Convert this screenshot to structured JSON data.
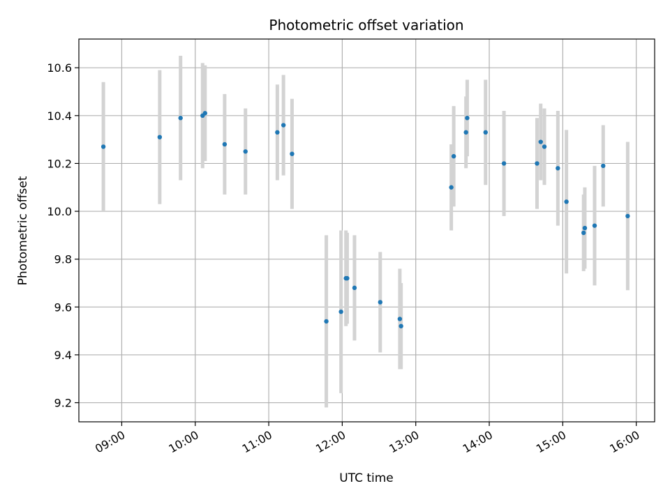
{
  "chart_data": {
    "type": "scatter",
    "title": "Photometric offset variation",
    "xlabel": "UTC time",
    "ylabel": "Photometric offset",
    "x_ticks": [
      "09:00",
      "10:00",
      "11:00",
      "12:00",
      "13:00",
      "14:00",
      "15:00",
      "16:00"
    ],
    "y_ticks": [
      "9.2",
      "9.4",
      "9.6",
      "9.8",
      "10.0",
      "10.2",
      "10.4",
      "10.6"
    ],
    "xlim": [
      "08:25",
      "16:15"
    ],
    "ylim": [
      9.12,
      10.72
    ],
    "grid": true,
    "colors": {
      "point": "#1f77b4",
      "errorbar": "#d3d3d3",
      "grid": "#b0b0b0"
    },
    "points": [
      {
        "x": "08:45",
        "y": 10.27,
        "yerr": 0.27
      },
      {
        "x": "09:31",
        "y": 10.31,
        "yerr": 0.28
      },
      {
        "x": "09:48",
        "y": 10.39,
        "yerr": 0.26
      },
      {
        "x": "10:06",
        "y": 10.4,
        "yerr": 0.22
      },
      {
        "x": "10:08",
        "y": 10.41,
        "yerr": 0.2
      },
      {
        "x": "10:24",
        "y": 10.28,
        "yerr": 0.21
      },
      {
        "x": "10:41",
        "y": 10.25,
        "yerr": 0.18
      },
      {
        "x": "11:07",
        "y": 10.33,
        "yerr": 0.2
      },
      {
        "x": "11:12",
        "y": 10.36,
        "yerr": 0.21
      },
      {
        "x": "11:19",
        "y": 10.24,
        "yerr": 0.23
      },
      {
        "x": "11:47",
        "y": 9.54,
        "yerr": 0.36
      },
      {
        "x": "11:59",
        "y": 9.58,
        "yerr": 0.34
      },
      {
        "x": "12:03",
        "y": 9.72,
        "yerr": 0.2
      },
      {
        "x": "12:04",
        "y": 9.72,
        "yerr": 0.19
      },
      {
        "x": "12:10",
        "y": 9.68,
        "yerr": 0.22
      },
      {
        "x": "12:31",
        "y": 9.62,
        "yerr": 0.21
      },
      {
        "x": "12:47",
        "y": 9.55,
        "yerr": 0.21
      },
      {
        "x": "12:48",
        "y": 9.52,
        "yerr": 0.18
      },
      {
        "x": "13:29",
        "y": 10.1,
        "yerr": 0.18
      },
      {
        "x": "13:31",
        "y": 10.23,
        "yerr": 0.21
      },
      {
        "x": "13:41",
        "y": 10.33,
        "yerr": 0.15
      },
      {
        "x": "13:42",
        "y": 10.39,
        "yerr": 0.16
      },
      {
        "x": "13:57",
        "y": 10.33,
        "yerr": 0.22
      },
      {
        "x": "14:12",
        "y": 10.2,
        "yerr": 0.22
      },
      {
        "x": "14:39",
        "y": 10.2,
        "yerr": 0.19
      },
      {
        "x": "14:42",
        "y": 10.29,
        "yerr": 0.16
      },
      {
        "x": "14:45",
        "y": 10.27,
        "yerr": 0.16
      },
      {
        "x": "14:56",
        "y": 10.18,
        "yerr": 0.24
      },
      {
        "x": "15:03",
        "y": 10.04,
        "yerr": 0.3
      },
      {
        "x": "15:17",
        "y": 9.91,
        "yerr": 0.16
      },
      {
        "x": "15:18",
        "y": 9.93,
        "yerr": 0.17
      },
      {
        "x": "15:26",
        "y": 9.94,
        "yerr": 0.25
      },
      {
        "x": "15:33",
        "y": 10.19,
        "yerr": 0.17
      },
      {
        "x": "15:53",
        "y": 9.98,
        "yerr": 0.31
      }
    ]
  }
}
